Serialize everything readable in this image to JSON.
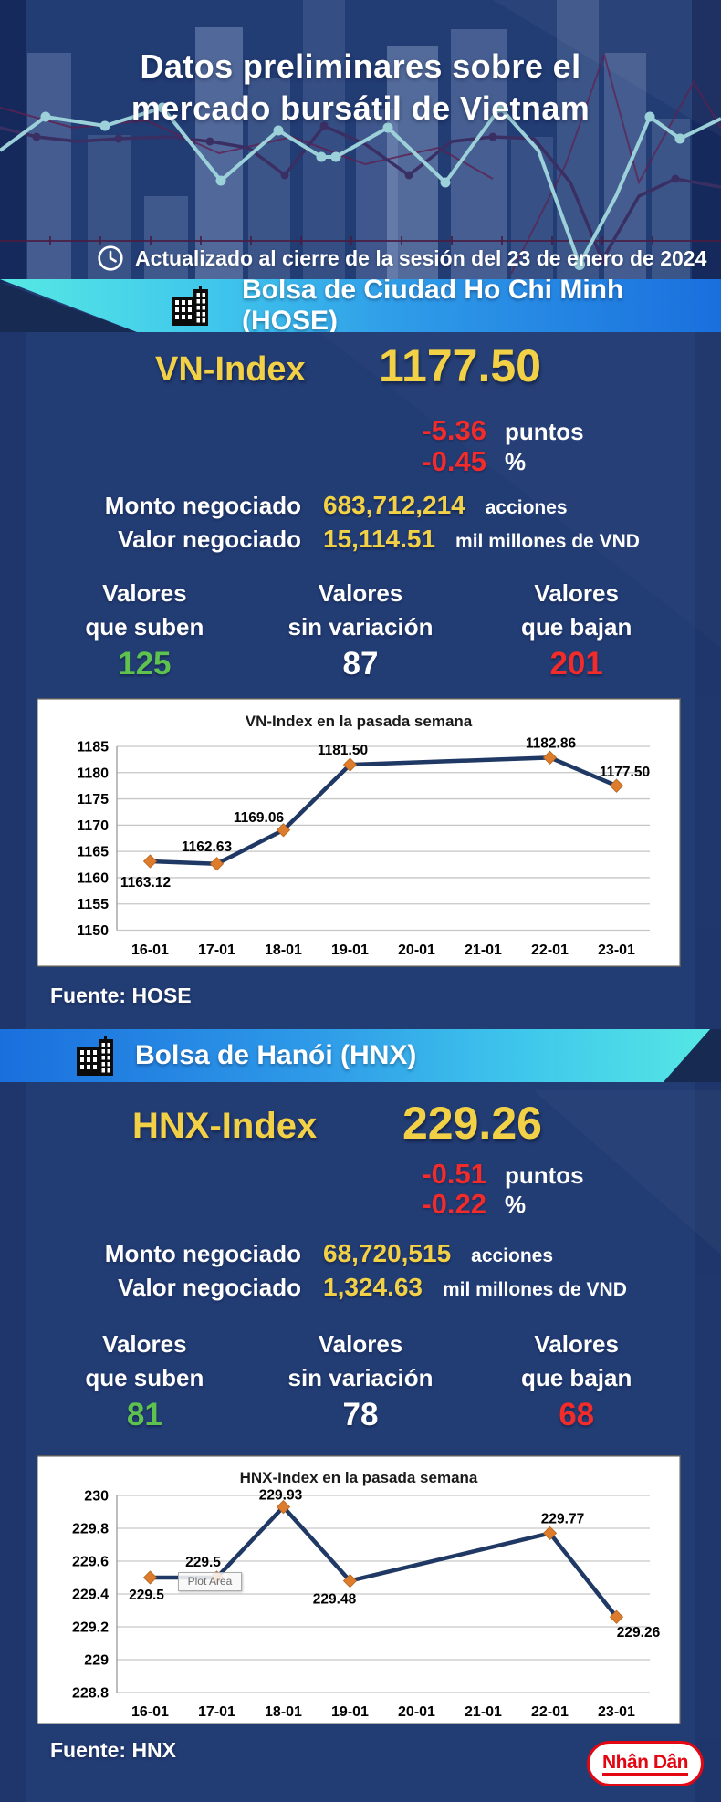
{
  "header": {
    "title_line1": "Datos preliminares sobre el",
    "title_line2": "mercado bursátil de Vietnam",
    "updated_text": "Actualizado al cierre de la sesión del 23 de enero de 2024"
  },
  "hose": {
    "banner_label": "Bolsa de Ciudad Ho Chi Minh (HOSE)",
    "index_name": "VN-Index",
    "index_value": "1177.50",
    "change_points_value": "-5.36",
    "change_points_unit": "puntos",
    "change_percent_value": "-0.45",
    "change_percent_unit": "%",
    "volume_label": "Monto negociado",
    "volume_value": "683,712,214",
    "volume_unit": "acciones",
    "turnover_label": "Valor negociado",
    "turnover_value": "15,114.51",
    "turnover_unit": "mil millones de VND",
    "gainers": {
      "label1": "Valores",
      "label2": "que suben",
      "value": "125"
    },
    "unchanged": {
      "label1": "Valores",
      "label2": "sin variación",
      "value": "87"
    },
    "losers": {
      "label1": "Valores",
      "label2": "que bajan",
      "value": "201"
    },
    "source": "Fuente: HOSE"
  },
  "hnx": {
    "banner_label": "Bolsa de Hanói (HNX)",
    "index_name": "HNX-Index",
    "index_value": "229.26",
    "change_points_value": "-0.51",
    "change_points_unit": "puntos",
    "change_percent_value": "-0.22",
    "change_percent_unit": "%",
    "volume_label": "Monto negociado",
    "volume_value": "68,720,515",
    "volume_unit": "acciones",
    "turnover_label": "Valor negociado",
    "turnover_value": "1,324.63",
    "turnover_unit": "mil millones de VND",
    "gainers": {
      "label1": "Valores",
      "label2": "que suben",
      "value": "81"
    },
    "unchanged": {
      "label1": "Valores",
      "label2": "sin variación",
      "value": "78"
    },
    "losers": {
      "label1": "Valores",
      "label2": "que bajan",
      "value": "68"
    },
    "plot_area_artifact": "Plot Area",
    "source": "Fuente:  HNX"
  },
  "footer": {
    "logo_text": "Nhân Dân"
  },
  "colors": {
    "background_navy": "#223c74",
    "accent_yellow": "#f3d146",
    "negative_red": "#f22b2b",
    "positive_green": "#5fc24f",
    "banner_cyan": "#56e9e4",
    "banner_blue": "#1a6fdd",
    "chart_line_navy": "#1f3864",
    "chart_marker_orange": "#dd7c2c",
    "logo_red": "#e30613"
  },
  "chart_data": [
    {
      "type": "line",
      "title": "VN-Index en la pasada semana",
      "categories": [
        "16-01",
        "17-01",
        "18-01",
        "19-01",
        "20-01",
        "21-01",
        "22-01",
        "23-01"
      ],
      "values": [
        1163.12,
        1162.63,
        1169.06,
        1181.5,
        null,
        null,
        1182.86,
        1177.5
      ],
      "point_labels": [
        "1163.12",
        "1162.63",
        "1169.06",
        "1181.50",
        null,
        null,
        "1182.86",
        "1177.50"
      ],
      "ytick_labels": [
        "1185",
        "1180",
        "1175",
        "1170",
        "1165",
        "1160",
        "1155",
        "1150"
      ],
      "ylim": [
        1150,
        1185
      ],
      "xlabel": "",
      "ylabel": "",
      "grid": true,
      "legend": false,
      "line_color": "#1f3864",
      "marker": "diamond",
      "marker_color": "#dd7c2c"
    },
    {
      "type": "line",
      "title": "HNX-Index en la pasada semana",
      "categories": [
        "16-01",
        "17-01",
        "18-01",
        "19-01",
        "20-01",
        "21-01",
        "22-01",
        "23-01"
      ],
      "values": [
        229.5,
        229.5,
        229.93,
        229.48,
        null,
        null,
        229.77,
        229.26
      ],
      "point_labels": [
        "229.5",
        "229.5",
        "229.93",
        "229.48",
        null,
        null,
        "229.77",
        "229.26"
      ],
      "ytick_labels": [
        "230",
        "229.8",
        "229.6",
        "229.4",
        "229.2",
        "229",
        "228.8"
      ],
      "ylim": [
        228.8,
        230
      ],
      "xlabel": "",
      "ylabel": "",
      "grid": true,
      "legend": false,
      "line_color": "#1f3864",
      "marker": "diamond",
      "marker_color": "#dd7c2c"
    }
  ]
}
